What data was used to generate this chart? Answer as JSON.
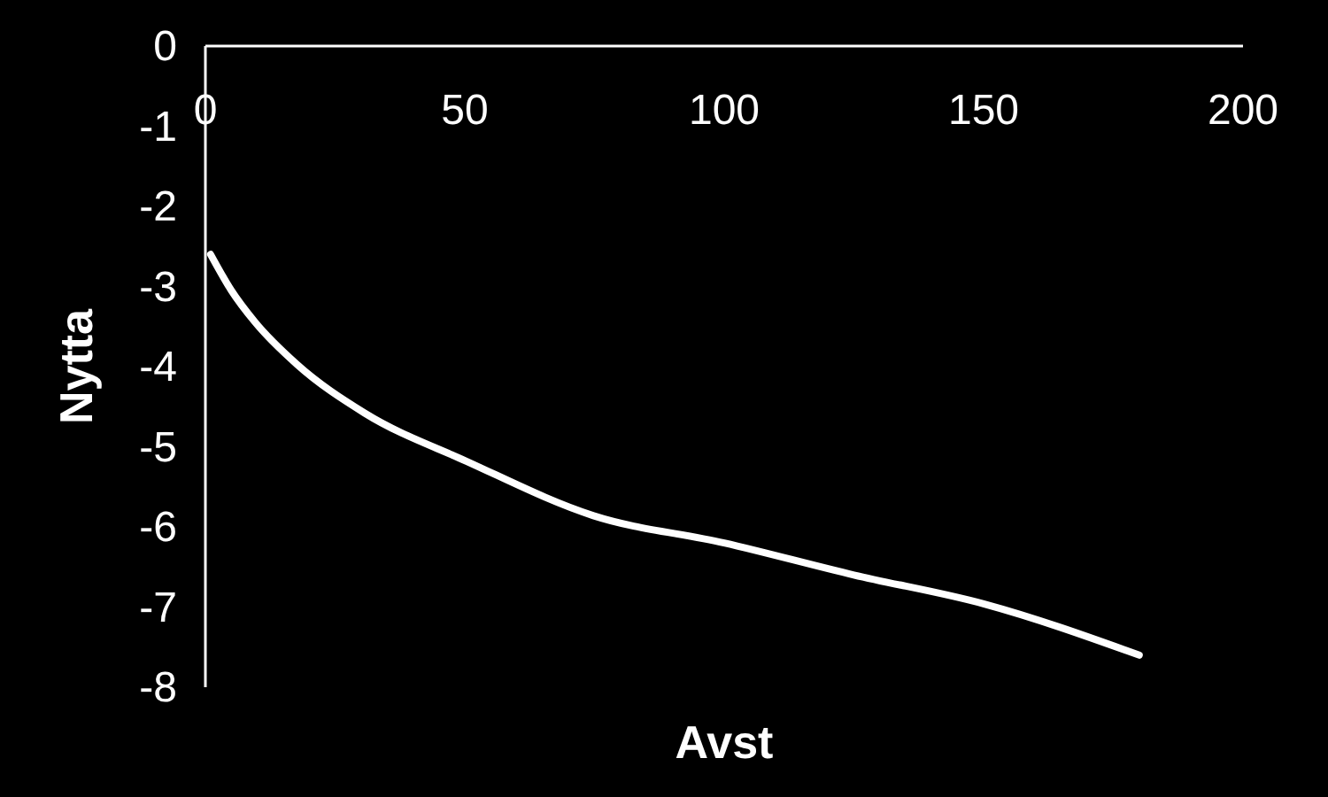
{
  "chart_data": {
    "type": "line",
    "xlabel": "Avst",
    "ylabel": "Nytta",
    "x": [
      1,
      5,
      9.5,
      17.6,
      30.7,
      50.3,
      74.8,
      100,
      125,
      150,
      180
    ],
    "series": [
      {
        "color": "#ffffff",
        "values": [
          -2.6,
          -3.05,
          -3.44,
          -3.97,
          -4.58,
          -5.18,
          -5.86,
          -6.2,
          -6.6,
          -6.96,
          -7.6
        ]
      }
    ],
    "xlim": [
      0,
      200
    ],
    "xticks": [
      0,
      50,
      100,
      150,
      200
    ],
    "ylim": [
      -8,
      0
    ],
    "yticks": [
      0,
      -1,
      -2,
      -3,
      -4,
      -5,
      -6,
      -7,
      -8
    ],
    "grid": false,
    "marker": "none",
    "line_style": "solid"
  }
}
